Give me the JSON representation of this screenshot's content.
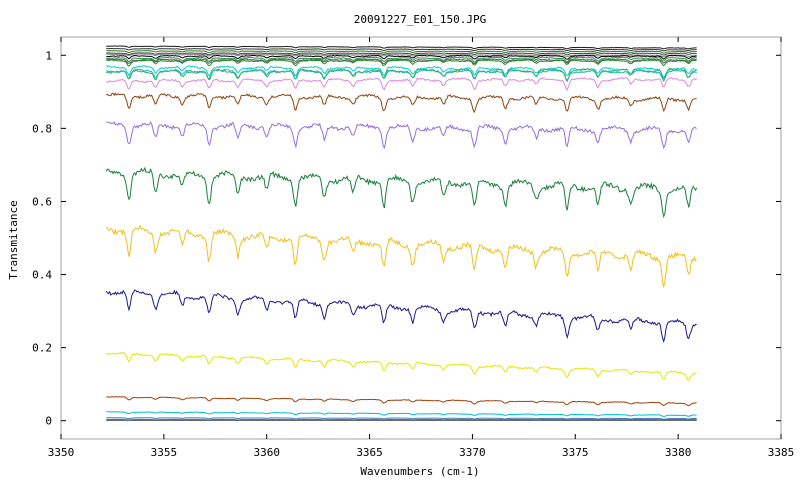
{
  "chart_data": {
    "type": "line",
    "title": "20091227_E01_150.JPG",
    "xlabel": "Wavenumbers (cm-1)",
    "ylabel": "Transmitance",
    "xlim": [
      3350,
      3385
    ],
    "ylim": [
      -0.05,
      1.05
    ],
    "x_range_data": [
      3352.2,
      3380.9
    ],
    "x_ticks": [
      3350,
      3355,
      3360,
      3365,
      3370,
      3375,
      3380,
      3385
    ],
    "y_ticks": [
      0,
      0.2,
      0.4,
      0.6,
      0.8,
      1
    ],
    "grid": false,
    "legend": "none",
    "absorption_lines": [
      3353.3,
      3354.6,
      3355.9,
      3357.2,
      3358.6,
      3360.0,
      3361.4,
      3362.8,
      3364.2,
      3365.7,
      3367.1,
      3368.6,
      3370.1,
      3371.6,
      3373.1,
      3374.6,
      3376.1,
      3377.7,
      3379.3,
      3380.5
    ],
    "series": [
      {
        "color": "#1a1a1a",
        "start": 1.025,
        "end": 1.02,
        "depth": 0.003
      },
      {
        "color": "#333333",
        "start": 1.018,
        "end": 1.015,
        "depth": 0.003
      },
      {
        "color": "#2a7a2a",
        "start": 1.012,
        "end": 1.01,
        "depth": 0.004
      },
      {
        "color": "#444444",
        "start": 1.006,
        "end": 1.005,
        "depth": 0.004
      },
      {
        "color": "#888888",
        "start": 1.003,
        "end": 1.0,
        "depth": 0.004
      },
      {
        "color": "#000000",
        "start": 0.998,
        "end": 0.998,
        "depth": 0.008
      },
      {
        "color": "#2e8b57",
        "start": 0.992,
        "end": 0.993,
        "depth": 0.01
      },
      {
        "color": "#5c5c5c",
        "start": 0.988,
        "end": 0.988,
        "depth": 0.01
      },
      {
        "color": "#228b22",
        "start": 0.985,
        "end": 0.985,
        "depth": 0.012
      },
      {
        "color": "#00ced1",
        "start": 0.968,
        "end": 0.962,
        "depth": 0.02
      },
      {
        "color": "#20b2aa",
        "start": 0.958,
        "end": 0.955,
        "depth": 0.022
      },
      {
        "color": "#2db37a",
        "start": 0.955,
        "end": 0.96,
        "depth": 0.025
      },
      {
        "color": "#dd88dd",
        "start": 0.93,
        "end": 0.935,
        "depth": 0.025
      },
      {
        "color": "#8b4513",
        "start": 0.89,
        "end": 0.88,
        "depth": 0.035
      },
      {
        "color": "#9370db",
        "start": 0.81,
        "end": 0.795,
        "depth": 0.05
      },
      {
        "color": "#1a7f3c",
        "start": 0.68,
        "end": 0.632,
        "depth": 0.07
      },
      {
        "color": "#f0c020",
        "start": 0.525,
        "end": 0.445,
        "depth": 0.07
      },
      {
        "color": "#1a1a8c",
        "start": 0.355,
        "end": 0.265,
        "depth": 0.05
      },
      {
        "color": "#e6e600",
        "start": 0.185,
        "end": 0.13,
        "depth": 0.022
      },
      {
        "color": "#a0400a",
        "start": 0.065,
        "end": 0.048,
        "depth": 0.008
      },
      {
        "color": "#00bcd4",
        "start": 0.024,
        "end": 0.015,
        "depth": 0.004
      },
      {
        "color": "#3a7fbf",
        "start": 0.008,
        "end": 0.006,
        "depth": 0.002
      },
      {
        "color": "#008080",
        "start": 0.003,
        "end": 0.003,
        "depth": 0.001
      },
      {
        "color": "#555555",
        "start": 0.001,
        "end": 0.001,
        "depth": 0.0
      }
    ]
  }
}
